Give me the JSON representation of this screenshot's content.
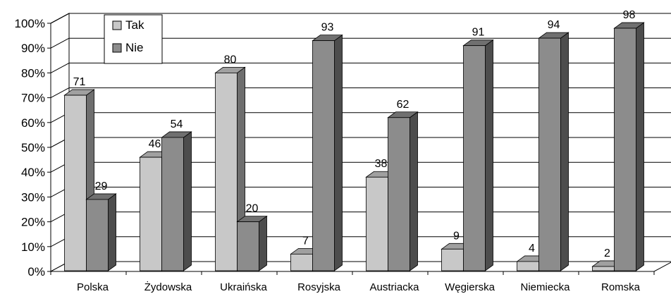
{
  "chart_data": {
    "type": "bar",
    "categories": [
      "Polska",
      "Żydowska",
      "Ukraińska",
      "Rosyjska",
      "Austriacka",
      "Węgierska",
      "Niemiecka",
      "Romska"
    ],
    "series": [
      {
        "name": "Tak",
        "values": [
          71,
          46,
          80,
          7,
          38,
          9,
          4,
          2
        ],
        "color": "#c8c8c8"
      },
      {
        "name": "Nie",
        "values": [
          29,
          54,
          20,
          93,
          62,
          91,
          94,
          98
        ],
        "color": "#8c8c8c"
      }
    ],
    "ylim": [
      0,
      100
    ],
    "yticks": [
      "0%",
      "10%",
      "20%",
      "30%",
      "40%",
      "50%",
      "60%",
      "70%",
      "80%",
      "90%",
      "100%"
    ],
    "legend_position": "top-left",
    "grid": true,
    "style": "3d"
  }
}
